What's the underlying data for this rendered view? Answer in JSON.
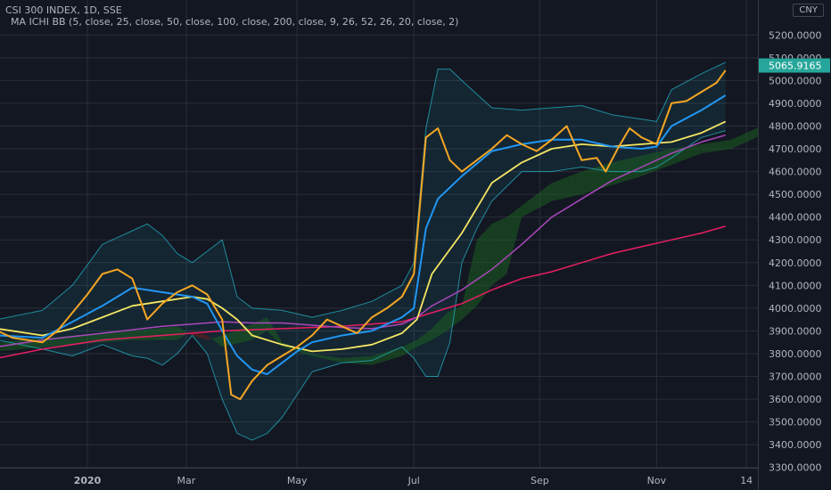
{
  "header": {
    "title": "CSI 300 INDEX, 1D, SSE",
    "indicator": "MA ICHI BB  (5, close, 25, close, 50, close, 100, close, 200, close, 9, 26, 52, 26, 20, close, 2)",
    "currency": "CNY"
  },
  "colors": {
    "background": "#131722",
    "grid": "#2a2e39",
    "axis_text": "#b2b5be",
    "ma5": "#f5a623",
    "ma25": "#2196f3",
    "ma50": "#f5e663",
    "ma100": "#ab47bc",
    "ma200": "#e91e63",
    "bb": "#26c6da",
    "cloud_bull": "#1b5e20",
    "cloud_bear": "#6d1b1b",
    "price_label": "#26a69a"
  },
  "chart_data": {
    "type": "line",
    "title": "CSI 300 INDEX, 1D, SSE",
    "ylim": [
      3250,
      5250
    ],
    "y_ticks": [
      "3300.0000",
      "3400.0000",
      "3500.0000",
      "3600.0000",
      "3700.0000",
      "3800.0000",
      "3900.0000",
      "4000.0000",
      "4100.0000",
      "4200.0000",
      "4300.0000",
      "4400.0000",
      "4500.0000",
      "4600.0000",
      "4700.0000",
      "4800.0000",
      "4900.0000",
      "5000.0000",
      "5100.0000",
      "5200.0000"
    ],
    "x_ticks": [
      {
        "label": "2020",
        "t": 15
      },
      {
        "label": "Mar",
        "t": 48
      },
      {
        "label": "May",
        "t": 85
      },
      {
        "label": "Jul",
        "t": 124
      },
      {
        "label": "Sep",
        "t": 166
      },
      {
        "label": "Nov",
        "t": 205
      },
      {
        "label": "14",
        "t": 235
      }
    ],
    "last_price": 5065.9165,
    "last_price_label": "5065.9165",
    "series": [
      {
        "key": "ma5",
        "points": [
          [
            -15,
            3900
          ],
          [
            -10,
            3870
          ],
          [
            -5,
            3860
          ],
          [
            0,
            3850
          ],
          [
            5,
            3900
          ],
          [
            10,
            3980
          ],
          [
            15,
            4060
          ],
          [
            20,
            4150
          ],
          [
            25,
            4170
          ],
          [
            30,
            4130
          ],
          [
            35,
            3950
          ],
          [
            40,
            4020
          ],
          [
            45,
            4070
          ],
          [
            50,
            4100
          ],
          [
            55,
            4060
          ],
          [
            60,
            3950
          ],
          [
            63,
            3620
          ],
          [
            66,
            3600
          ],
          [
            70,
            3680
          ],
          [
            75,
            3750
          ],
          [
            80,
            3790
          ],
          [
            85,
            3830
          ],
          [
            90,
            3880
          ],
          [
            95,
            3950
          ],
          [
            100,
            3920
          ],
          [
            105,
            3890
          ],
          [
            110,
            3960
          ],
          [
            115,
            4000
          ],
          [
            120,
            4050
          ],
          [
            124,
            4150
          ],
          [
            128,
            4750
          ],
          [
            132,
            4790
          ],
          [
            136,
            4650
          ],
          [
            140,
            4600
          ],
          [
            145,
            4650
          ],
          [
            150,
            4700
          ],
          [
            155,
            4760
          ],
          [
            160,
            4720
          ],
          [
            165,
            4690
          ],
          [
            170,
            4740
          ],
          [
            175,
            4800
          ],
          [
            180,
            4650
          ],
          [
            185,
            4660
          ],
          [
            188,
            4600
          ],
          [
            192,
            4700
          ],
          [
            196,
            4790
          ],
          [
            200,
            4750
          ],
          [
            205,
            4720
          ],
          [
            210,
            4900
          ],
          [
            215,
            4910
          ],
          [
            220,
            4950
          ],
          [
            225,
            4990
          ],
          [
            228,
            5045
          ]
        ]
      },
      {
        "key": "ma25",
        "points": [
          [
            -15,
            3880
          ],
          [
            0,
            3870
          ],
          [
            10,
            3940
          ],
          [
            20,
            4010
          ],
          [
            30,
            4090
          ],
          [
            40,
            4070
          ],
          [
            50,
            4050
          ],
          [
            55,
            4020
          ],
          [
            60,
            3900
          ],
          [
            65,
            3790
          ],
          [
            70,
            3730
          ],
          [
            75,
            3710
          ],
          [
            80,
            3760
          ],
          [
            85,
            3810
          ],
          [
            90,
            3850
          ],
          [
            100,
            3880
          ],
          [
            110,
            3900
          ],
          [
            120,
            3960
          ],
          [
            124,
            4000
          ],
          [
            128,
            4350
          ],
          [
            132,
            4480
          ],
          [
            140,
            4580
          ],
          [
            150,
            4690
          ],
          [
            160,
            4720
          ],
          [
            170,
            4740
          ],
          [
            180,
            4740
          ],
          [
            190,
            4710
          ],
          [
            200,
            4700
          ],
          [
            205,
            4710
          ],
          [
            210,
            4800
          ],
          [
            220,
            4870
          ],
          [
            228,
            4935
          ]
        ]
      },
      {
        "key": "ma50",
        "points": [
          [
            -15,
            3910
          ],
          [
            0,
            3880
          ],
          [
            10,
            3910
          ],
          [
            20,
            3960
          ],
          [
            30,
            4010
          ],
          [
            40,
            4030
          ],
          [
            50,
            4050
          ],
          [
            55,
            4040
          ],
          [
            60,
            4000
          ],
          [
            65,
            3950
          ],
          [
            70,
            3880
          ],
          [
            80,
            3840
          ],
          [
            90,
            3810
          ],
          [
            100,
            3820
          ],
          [
            110,
            3840
          ],
          [
            120,
            3890
          ],
          [
            125,
            3950
          ],
          [
            130,
            4150
          ],
          [
            140,
            4330
          ],
          [
            150,
            4550
          ],
          [
            160,
            4640
          ],
          [
            170,
            4700
          ],
          [
            180,
            4720
          ],
          [
            190,
            4710
          ],
          [
            200,
            4720
          ],
          [
            210,
            4730
          ],
          [
            220,
            4770
          ],
          [
            228,
            4820
          ]
        ]
      },
      {
        "key": "ma100",
        "points": [
          [
            -15,
            3830
          ],
          [
            0,
            3860
          ],
          [
            20,
            3890
          ],
          [
            40,
            3920
          ],
          [
            50,
            3930
          ],
          [
            60,
            3940
          ],
          [
            70,
            3935
          ],
          [
            80,
            3935
          ],
          [
            90,
            3925
          ],
          [
            100,
            3915
          ],
          [
            110,
            3910
          ],
          [
            120,
            3930
          ],
          [
            125,
            3960
          ],
          [
            130,
            4010
          ],
          [
            140,
            4080
          ],
          [
            150,
            4170
          ],
          [
            160,
            4280
          ],
          [
            170,
            4400
          ],
          [
            180,
            4480
          ],
          [
            190,
            4560
          ],
          [
            200,
            4620
          ],
          [
            210,
            4680
          ],
          [
            220,
            4730
          ],
          [
            228,
            4760
          ]
        ]
      },
      {
        "key": "ma200",
        "points": [
          [
            -15,
            3780
          ],
          [
            0,
            3820
          ],
          [
            20,
            3860
          ],
          [
            40,
            3880
          ],
          [
            60,
            3900
          ],
          [
            80,
            3910
          ],
          [
            100,
            3920
          ],
          [
            120,
            3940
          ],
          [
            130,
            3980
          ],
          [
            140,
            4020
          ],
          [
            150,
            4080
          ],
          [
            160,
            4130
          ],
          [
            170,
            4160
          ],
          [
            180,
            4200
          ],
          [
            190,
            4240
          ],
          [
            200,
            4270
          ],
          [
            210,
            4300
          ],
          [
            220,
            4330
          ],
          [
            228,
            4360
          ]
        ]
      },
      {
        "key": "bb_upper",
        "points": [
          [
            -15,
            3950
          ],
          [
            0,
            3990
          ],
          [
            10,
            4100
          ],
          [
            20,
            4280
          ],
          [
            30,
            4340
          ],
          [
            35,
            4370
          ],
          [
            40,
            4320
          ],
          [
            45,
            4240
          ],
          [
            50,
            4200
          ],
          [
            55,
            4250
          ],
          [
            60,
            4300
          ],
          [
            65,
            4050
          ],
          [
            70,
            4000
          ],
          [
            80,
            3990
          ],
          [
            90,
            3960
          ],
          [
            100,
            3990
          ],
          [
            110,
            4030
          ],
          [
            120,
            4100
          ],
          [
            124,
            4200
          ],
          [
            128,
            4790
          ],
          [
            132,
            5050
          ],
          [
            136,
            5050
          ],
          [
            140,
            5000
          ],
          [
            150,
            4880
          ],
          [
            160,
            4870
          ],
          [
            170,
            4880
          ],
          [
            180,
            4890
          ],
          [
            190,
            4850
          ],
          [
            200,
            4830
          ],
          [
            205,
            4820
          ],
          [
            210,
            4960
          ],
          [
            220,
            5030
          ],
          [
            228,
            5080
          ]
        ]
      },
      {
        "key": "bb_lower",
        "points": [
          [
            -15,
            3860
          ],
          [
            0,
            3820
          ],
          [
            10,
            3790
          ],
          [
            20,
            3840
          ],
          [
            30,
            3790
          ],
          [
            35,
            3780
          ],
          [
            40,
            3750
          ],
          [
            45,
            3800
          ],
          [
            50,
            3880
          ],
          [
            55,
            3800
          ],
          [
            60,
            3600
          ],
          [
            65,
            3450
          ],
          [
            70,
            3420
          ],
          [
            75,
            3450
          ],
          [
            80,
            3520
          ],
          [
            90,
            3720
          ],
          [
            100,
            3760
          ],
          [
            110,
            3770
          ],
          [
            120,
            3830
          ],
          [
            124,
            3780
          ],
          [
            128,
            3700
          ],
          [
            132,
            3700
          ],
          [
            136,
            3850
          ],
          [
            140,
            4200
          ],
          [
            145,
            4350
          ],
          [
            150,
            4470
          ],
          [
            160,
            4600
          ],
          [
            170,
            4600
          ],
          [
            180,
            4620
          ],
          [
            190,
            4600
          ],
          [
            200,
            4600
          ],
          [
            205,
            4620
          ],
          [
            210,
            4660
          ],
          [
            220,
            4750
          ],
          [
            228,
            4780
          ]
        ]
      },
      {
        "key": "cloud_a",
        "points": [
          [
            -15,
            3850
          ],
          [
            10,
            3880
          ],
          [
            30,
            3900
          ],
          [
            45,
            3920
          ],
          [
            50,
            3880
          ],
          [
            55,
            3860
          ],
          [
            60,
            3880
          ],
          [
            70,
            3930
          ],
          [
            75,
            3960
          ],
          [
            80,
            3850
          ],
          [
            90,
            3800
          ],
          [
            100,
            3780
          ],
          [
            110,
            3790
          ],
          [
            120,
            3830
          ],
          [
            125,
            3860
          ],
          [
            130,
            3910
          ],
          [
            135,
            3980
          ],
          [
            140,
            4010
          ],
          [
            145,
            4300
          ],
          [
            150,
            4370
          ],
          [
            155,
            4400
          ],
          [
            160,
            4450
          ],
          [
            170,
            4550
          ],
          [
            180,
            4600
          ],
          [
            190,
            4640
          ],
          [
            200,
            4670
          ],
          [
            210,
            4700
          ],
          [
            220,
            4720
          ],
          [
            230,
            4740
          ],
          [
            240,
            4800
          ]
        ]
      },
      {
        "key": "cloud_b",
        "points": [
          [
            -15,
            3810
          ],
          [
            10,
            3840
          ],
          [
            30,
            3860
          ],
          [
            45,
            3860
          ],
          [
            50,
            3900
          ],
          [
            55,
            3880
          ],
          [
            60,
            3830
          ],
          [
            70,
            3860
          ],
          [
            75,
            3900
          ],
          [
            80,
            3830
          ],
          [
            90,
            3790
          ],
          [
            100,
            3760
          ],
          [
            110,
            3750
          ],
          [
            120,
            3790
          ],
          [
            125,
            3830
          ],
          [
            130,
            3860
          ],
          [
            135,
            3900
          ],
          [
            140,
            3950
          ],
          [
            145,
            4010
          ],
          [
            150,
            4100
          ],
          [
            155,
            4150
          ],
          [
            160,
            4400
          ],
          [
            170,
            4470
          ],
          [
            180,
            4500
          ],
          [
            190,
            4540
          ],
          [
            200,
            4580
          ],
          [
            210,
            4630
          ],
          [
            220,
            4680
          ],
          [
            230,
            4700
          ],
          [
            240,
            4760
          ]
        ]
      }
    ]
  }
}
